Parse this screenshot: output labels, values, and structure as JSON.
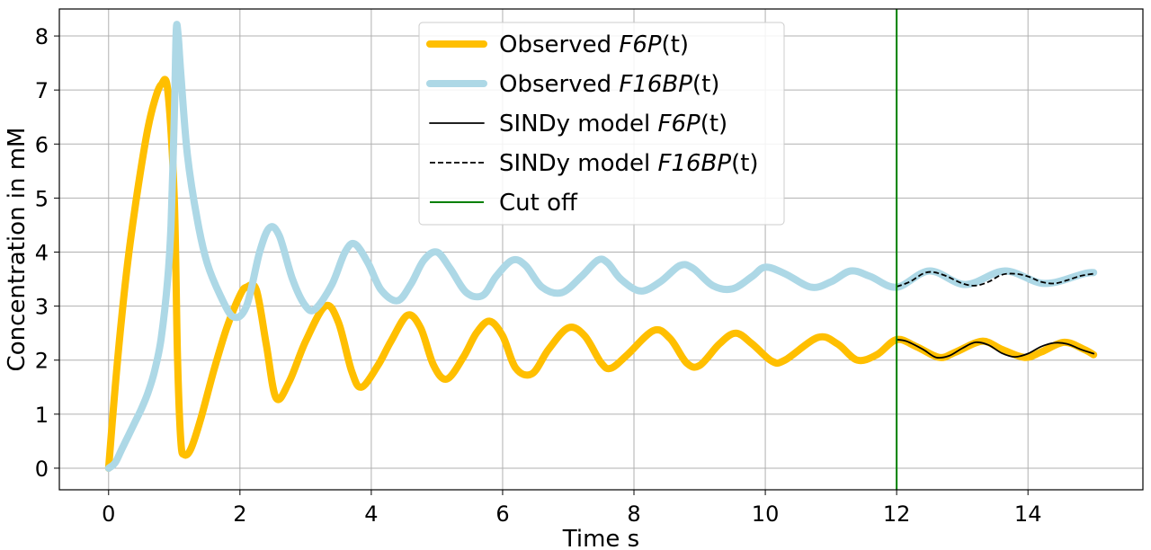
{
  "chart_data": {
    "type": "line",
    "title": "",
    "xlabel": "Time s",
    "ylabel": "Concentration in mM",
    "xlim": [
      -0.75,
      15.75
    ],
    "ylim": [
      -0.4,
      8.5
    ],
    "xticks": [
      0,
      2,
      4,
      6,
      8,
      10,
      12,
      14
    ],
    "yticks": [
      0,
      1,
      2,
      3,
      4,
      5,
      6,
      7,
      8
    ],
    "grid": true,
    "legend_position": "top-center",
    "cutoff_x": 12,
    "colors": {
      "f6p": "#ffbf00",
      "f16bp": "#add8e6",
      "model": "#000000",
      "cutoff": "#008000",
      "grid": "#b0b0b0"
    },
    "series": [
      {
        "name": "Observed F6P(t)",
        "legend": {
          "prefix": "Observed ",
          "math": "F6P",
          "suffix": "(t)"
        },
        "style": "thick",
        "x": [
          0,
          0.1,
          0.2,
          0.3,
          0.4,
          0.5,
          0.6,
          0.7,
          0.8,
          0.9,
          1.0,
          1.05,
          1.1,
          1.15,
          1.25,
          1.4,
          1.6,
          1.8,
          2.0,
          2.1,
          2.25,
          2.4,
          2.55,
          2.75,
          3.0,
          3.3,
          3.5,
          3.7,
          3.85,
          4.1,
          4.3,
          4.55,
          4.75,
          4.95,
          5.15,
          5.4,
          5.6,
          5.8,
          6.0,
          6.2,
          6.45,
          6.7,
          7.0,
          7.25,
          7.5,
          7.65,
          7.9,
          8.3,
          8.55,
          8.8,
          9.0,
          9.3,
          9.55,
          9.8,
          10.1,
          10.3,
          10.8,
          11.1,
          11.4,
          11.7,
          12.0,
          12.3,
          12.65,
          12.9,
          13.3,
          13.6,
          13.95,
          14.2,
          14.55,
          14.85,
          15.0
        ],
        "y": [
          0,
          1.5,
          2.8,
          3.9,
          4.8,
          5.6,
          6.3,
          6.8,
          7.1,
          7.0,
          5.0,
          2.0,
          0.5,
          0.25,
          0.35,
          0.9,
          1.8,
          2.6,
          3.2,
          3.35,
          3.3,
          2.3,
          1.3,
          1.6,
          2.35,
          3.0,
          2.7,
          1.8,
          1.5,
          1.9,
          2.35,
          2.83,
          2.6,
          1.9,
          1.65,
          2.05,
          2.5,
          2.72,
          2.45,
          1.85,
          1.75,
          2.2,
          2.6,
          2.45,
          1.95,
          1.85,
          2.1,
          2.55,
          2.4,
          1.95,
          1.9,
          2.3,
          2.5,
          2.3,
          1.98,
          2.0,
          2.42,
          2.3,
          2.0,
          2.1,
          2.38,
          2.25,
          2.05,
          2.15,
          2.35,
          2.2,
          2.05,
          2.15,
          2.33,
          2.2,
          2.1
        ]
      },
      {
        "name": "Observed F16BP(t)",
        "legend": {
          "prefix": "Observed ",
          "math": "F16BP",
          "suffix": "(t)"
        },
        "style": "thick",
        "x": [
          0,
          0.1,
          0.2,
          0.3,
          0.4,
          0.5,
          0.6,
          0.7,
          0.8,
          0.9,
          0.95,
          1.0,
          1.03,
          1.06,
          1.1,
          1.2,
          1.35,
          1.5,
          1.7,
          1.9,
          2.1,
          2.3,
          2.45,
          2.6,
          2.8,
          3.0,
          3.15,
          3.4,
          3.6,
          3.75,
          3.95,
          4.15,
          4.4,
          4.6,
          4.8,
          5.0,
          5.2,
          5.45,
          5.7,
          5.9,
          6.15,
          6.35,
          6.6,
          6.9,
          7.2,
          7.45,
          7.6,
          7.8,
          8.1,
          8.4,
          8.7,
          8.9,
          9.2,
          9.5,
          9.8,
          10.0,
          10.3,
          10.7,
          11.0,
          11.3,
          11.6,
          12.0,
          12.5,
          13.05,
          13.65,
          14.25,
          14.85,
          15.0
        ],
        "y": [
          0,
          0.1,
          0.35,
          0.6,
          0.85,
          1.1,
          1.4,
          1.8,
          2.4,
          3.5,
          4.5,
          6.5,
          8.1,
          8.0,
          7.3,
          5.8,
          4.6,
          3.8,
          3.2,
          2.8,
          3.0,
          4.0,
          4.45,
          4.3,
          3.5,
          3.0,
          2.95,
          3.4,
          4.0,
          4.15,
          3.8,
          3.3,
          3.1,
          3.4,
          3.85,
          4.0,
          3.7,
          3.25,
          3.2,
          3.55,
          3.85,
          3.75,
          3.35,
          3.25,
          3.55,
          3.85,
          3.8,
          3.5,
          3.28,
          3.45,
          3.75,
          3.7,
          3.38,
          3.32,
          3.55,
          3.72,
          3.6,
          3.35,
          3.45,
          3.65,
          3.55,
          3.35,
          3.65,
          3.4,
          3.65,
          3.42,
          3.6,
          3.62
        ]
      },
      {
        "name": "SINDy model F6P(t)",
        "legend": {
          "prefix": "SINDy model ",
          "math": "F6P",
          "suffix": "(t)"
        },
        "style": "solid",
        "x": [
          12.0,
          12.15,
          12.4,
          12.6,
          12.8,
          13.0,
          13.2,
          13.4,
          13.6,
          13.8,
          14.0,
          14.2,
          14.4,
          14.6,
          14.8,
          15.0
        ],
        "y": [
          2.38,
          2.35,
          2.2,
          2.05,
          2.08,
          2.22,
          2.33,
          2.28,
          2.13,
          2.06,
          2.12,
          2.25,
          2.32,
          2.3,
          2.2,
          2.12
        ]
      },
      {
        "name": "SINDy model F16BP(t)",
        "legend": {
          "prefix": "SINDy model ",
          "math": "F16BP",
          "suffix": "(t)"
        },
        "style": "dashed",
        "x": [
          12.0,
          12.2,
          12.4,
          12.55,
          12.75,
          13.0,
          13.2,
          13.4,
          13.6,
          13.8,
          14.0,
          14.2,
          14.4,
          14.6,
          14.8,
          15.0
        ],
        "y": [
          3.36,
          3.45,
          3.6,
          3.63,
          3.56,
          3.42,
          3.38,
          3.45,
          3.58,
          3.6,
          3.55,
          3.45,
          3.42,
          3.48,
          3.56,
          3.6
        ]
      }
    ],
    "cutoff_label": "Cut off"
  }
}
